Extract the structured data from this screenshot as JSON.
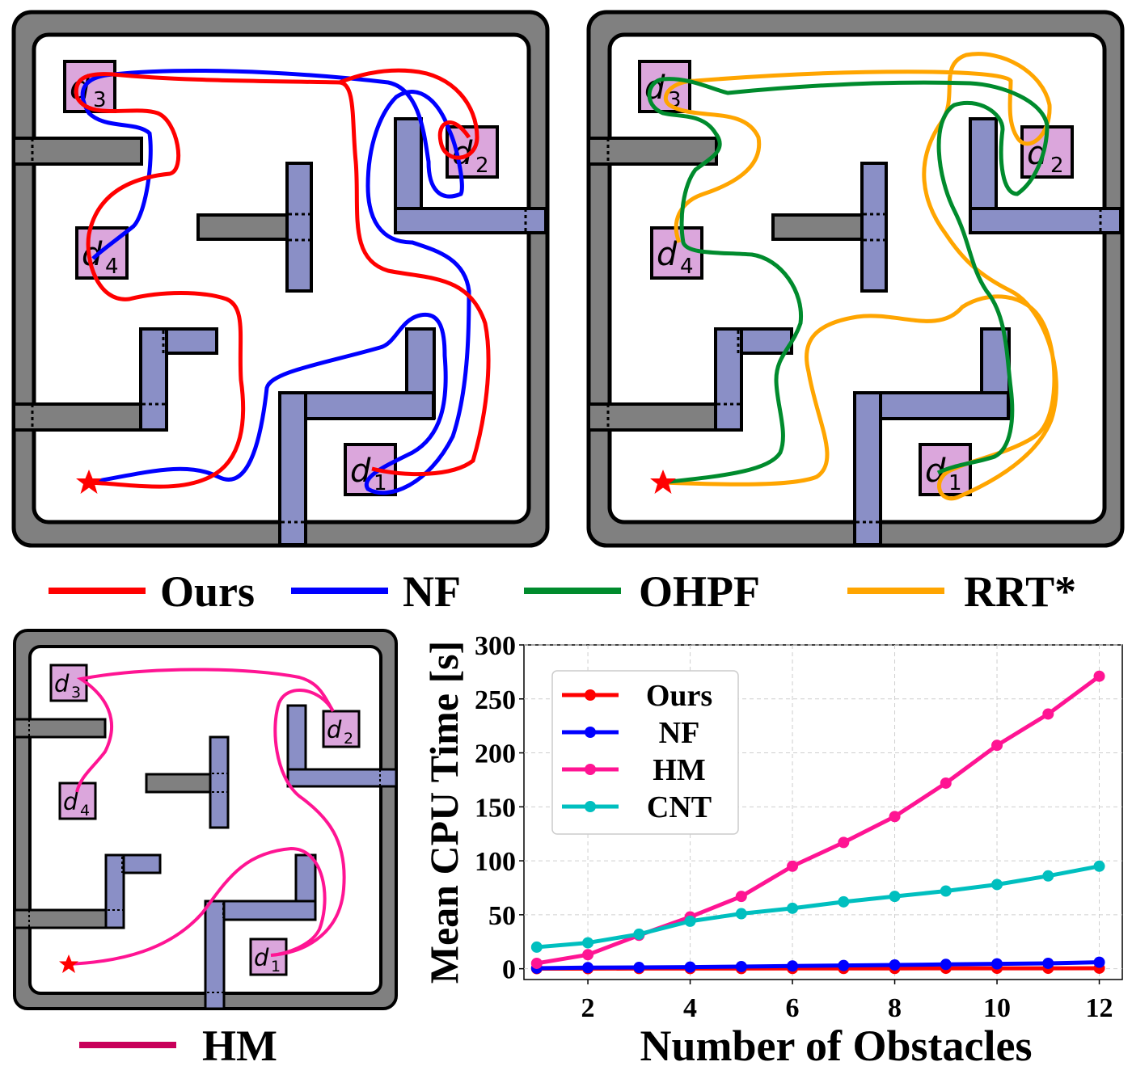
{
  "maps": {
    "targets": {
      "d1": "d",
      "d2": "d",
      "d3": "d",
      "d4": "d",
      "sub1": "1",
      "sub2": "2",
      "sub3": "3",
      "sub4": "4"
    },
    "start_marker": "star"
  },
  "legend_top": [
    {
      "label": "Ours",
      "color": "#ff0000"
    },
    {
      "label": "NF",
      "color": "#0000ff"
    },
    {
      "label": "OHPF",
      "color": "#008b2d"
    },
    {
      "label": "RRT*",
      "color": "#ffa500"
    }
  ],
  "legend_bottom": {
    "label": "HM",
    "color": "#c8005a"
  },
  "colors": {
    "wall": "#808080",
    "obstacle": "#8a8fc6",
    "target": "#dba6dc",
    "start": "#ff0000"
  },
  "chart_data": {
    "type": "line",
    "xlabel": "Number of Obstacles",
    "ylabel": "Mean CPU Time [s]",
    "xlim": [
      0.75,
      12.45
    ],
    "ylim": [
      -10,
      300
    ],
    "xticks": [
      2,
      4,
      6,
      8,
      10,
      12
    ],
    "yticks": [
      0,
      50,
      100,
      150,
      200,
      250,
      300
    ],
    "grid": true,
    "legend_position": "upper-left",
    "x": [
      1,
      2,
      3,
      4,
      5,
      6,
      7,
      8,
      9,
      10,
      11,
      12
    ],
    "series": [
      {
        "name": "Ours",
        "color": "#ff0000",
        "values": [
          0.1,
          0.1,
          0.2,
          0.2,
          0.2,
          0.3,
          0.3,
          0.3,
          0.4,
          0.4,
          0.4,
          0.5
        ]
      },
      {
        "name": "NF",
        "color": "#0000ff",
        "values": [
          0.5,
          1,
          1.2,
          1.5,
          2,
          2.5,
          3,
          3.5,
          4,
          4.5,
          5,
          6
        ]
      },
      {
        "name": "HM",
        "color": "#ff1493",
        "values": [
          5,
          13,
          31,
          48,
          67,
          95,
          117,
          141,
          172,
          207,
          236,
          271
        ]
      },
      {
        "name": "CNT",
        "color": "#00bfbf",
        "values": [
          20,
          24,
          32,
          44,
          51,
          56,
          62,
          67,
          72,
          78,
          86,
          95
        ]
      }
    ]
  }
}
